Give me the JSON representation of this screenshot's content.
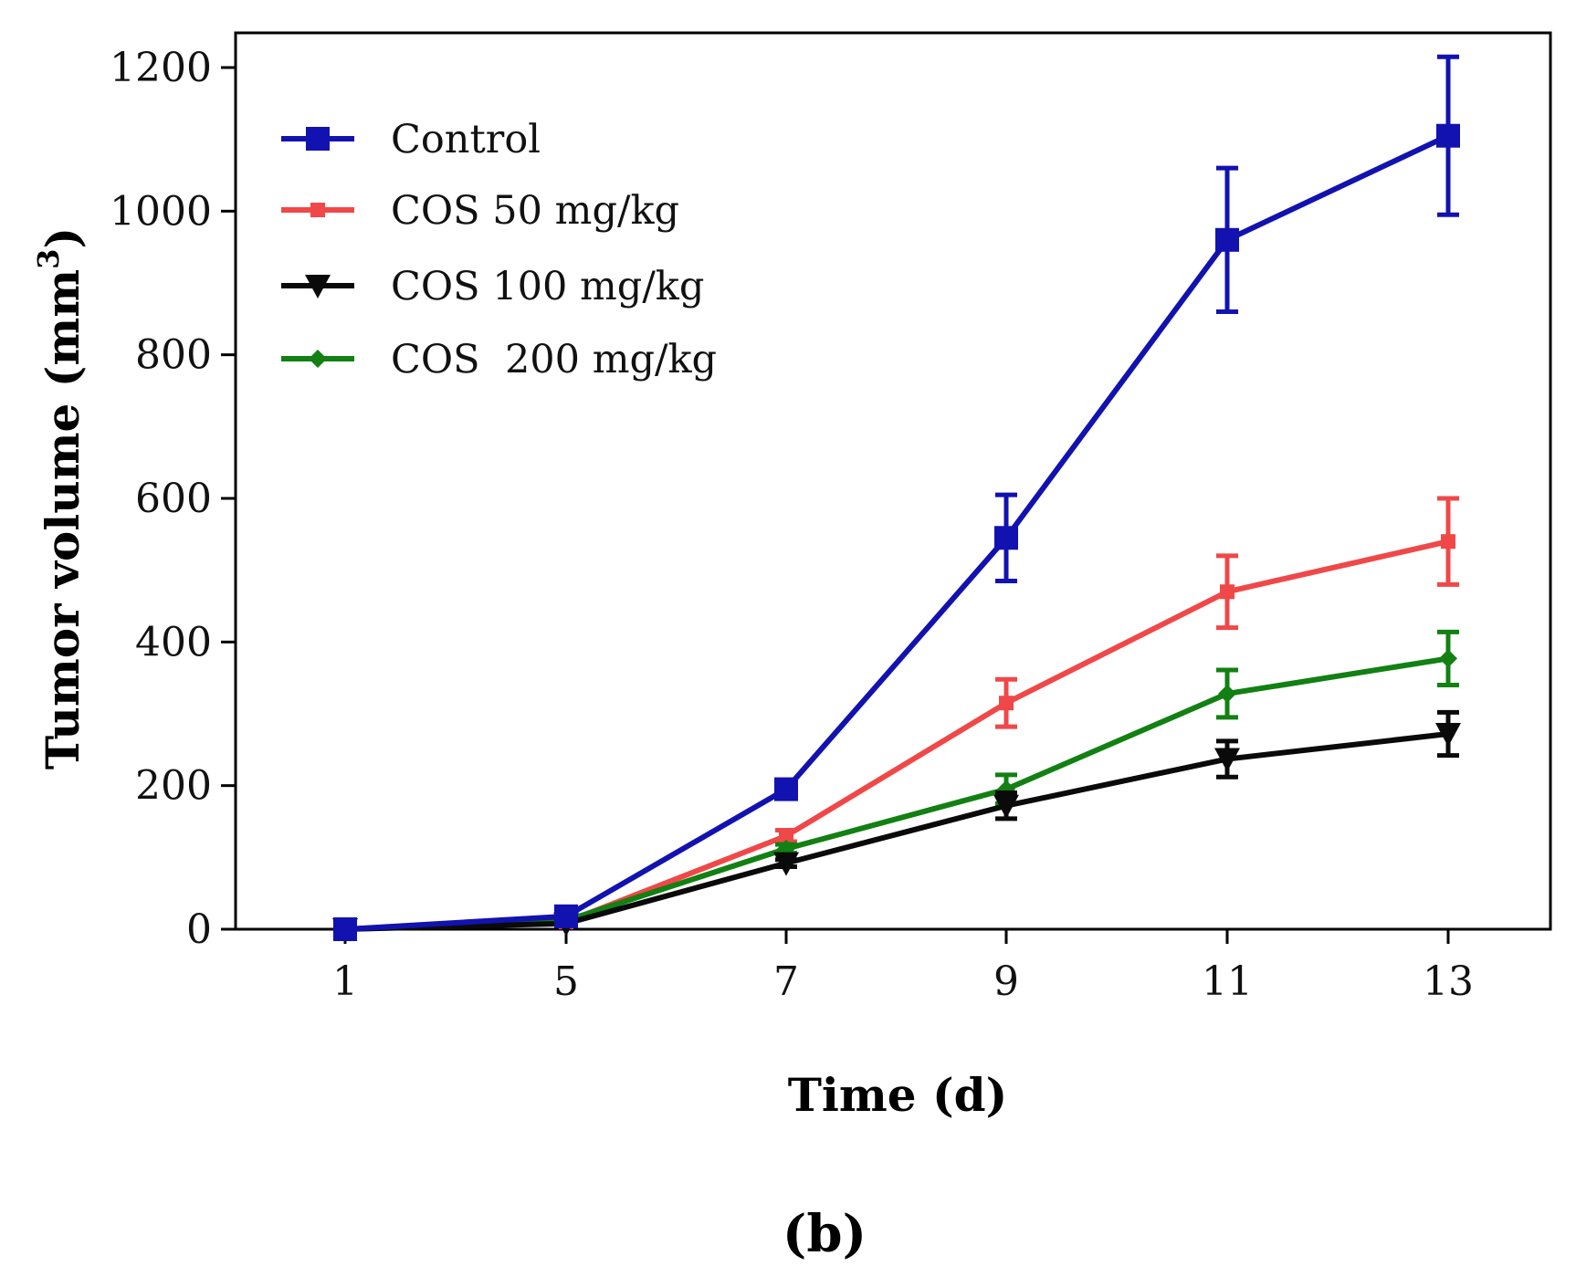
{
  "chart_data": {
    "type": "line",
    "title": "",
    "xlabel": "Time (d)",
    "ylabel_main": "Tumor volume (mm",
    "ylabel_sup": "3",
    "ylabel_close": ")",
    "panel_label": "(b)",
    "x": [
      1,
      5,
      7,
      9,
      11,
      13
    ],
    "x_tick_labels": [
      "1",
      "5",
      "7",
      "9",
      "11",
      "13"
    ],
    "y_ticks": [
      0,
      200,
      400,
      600,
      800,
      1000,
      1200
    ],
    "y_tick_labels": [
      "0",
      "200",
      "400",
      "600",
      "800",
      "1000",
      "1200"
    ],
    "ylim": [
      0,
      1200
    ],
    "grid": false,
    "legend_position": "top-left",
    "series": [
      {
        "name": "Control",
        "color": "#1212b0",
        "marker": "square",
        "values": [
          0,
          18,
          195,
          545,
          960,
          1105
        ],
        "errors": [
          0,
          0,
          12,
          60,
          100,
          110
        ]
      },
      {
        "name": "COS 50 mg/kg",
        "color": "#f04848",
        "marker": "small-square",
        "values": [
          0,
          10,
          130,
          315,
          470,
          540
        ],
        "errors": [
          0,
          0,
          8,
          33,
          50,
          60
        ]
      },
      {
        "name": "COS 100 mg/kg",
        "color": "#0a0a0a",
        "marker": "triangle-down",
        "values": [
          0,
          8,
          92,
          172,
          237,
          272
        ],
        "errors": [
          0,
          0,
          5,
          18,
          25,
          30
        ]
      },
      {
        "name": "COS  200 mg/kg",
        "color": "#128012",
        "marker": "diamond",
        "values": [
          0,
          12,
          112,
          195,
          328,
          377
        ],
        "errors": [
          0,
          0,
          6,
          20,
          33,
          37
        ]
      }
    ]
  }
}
